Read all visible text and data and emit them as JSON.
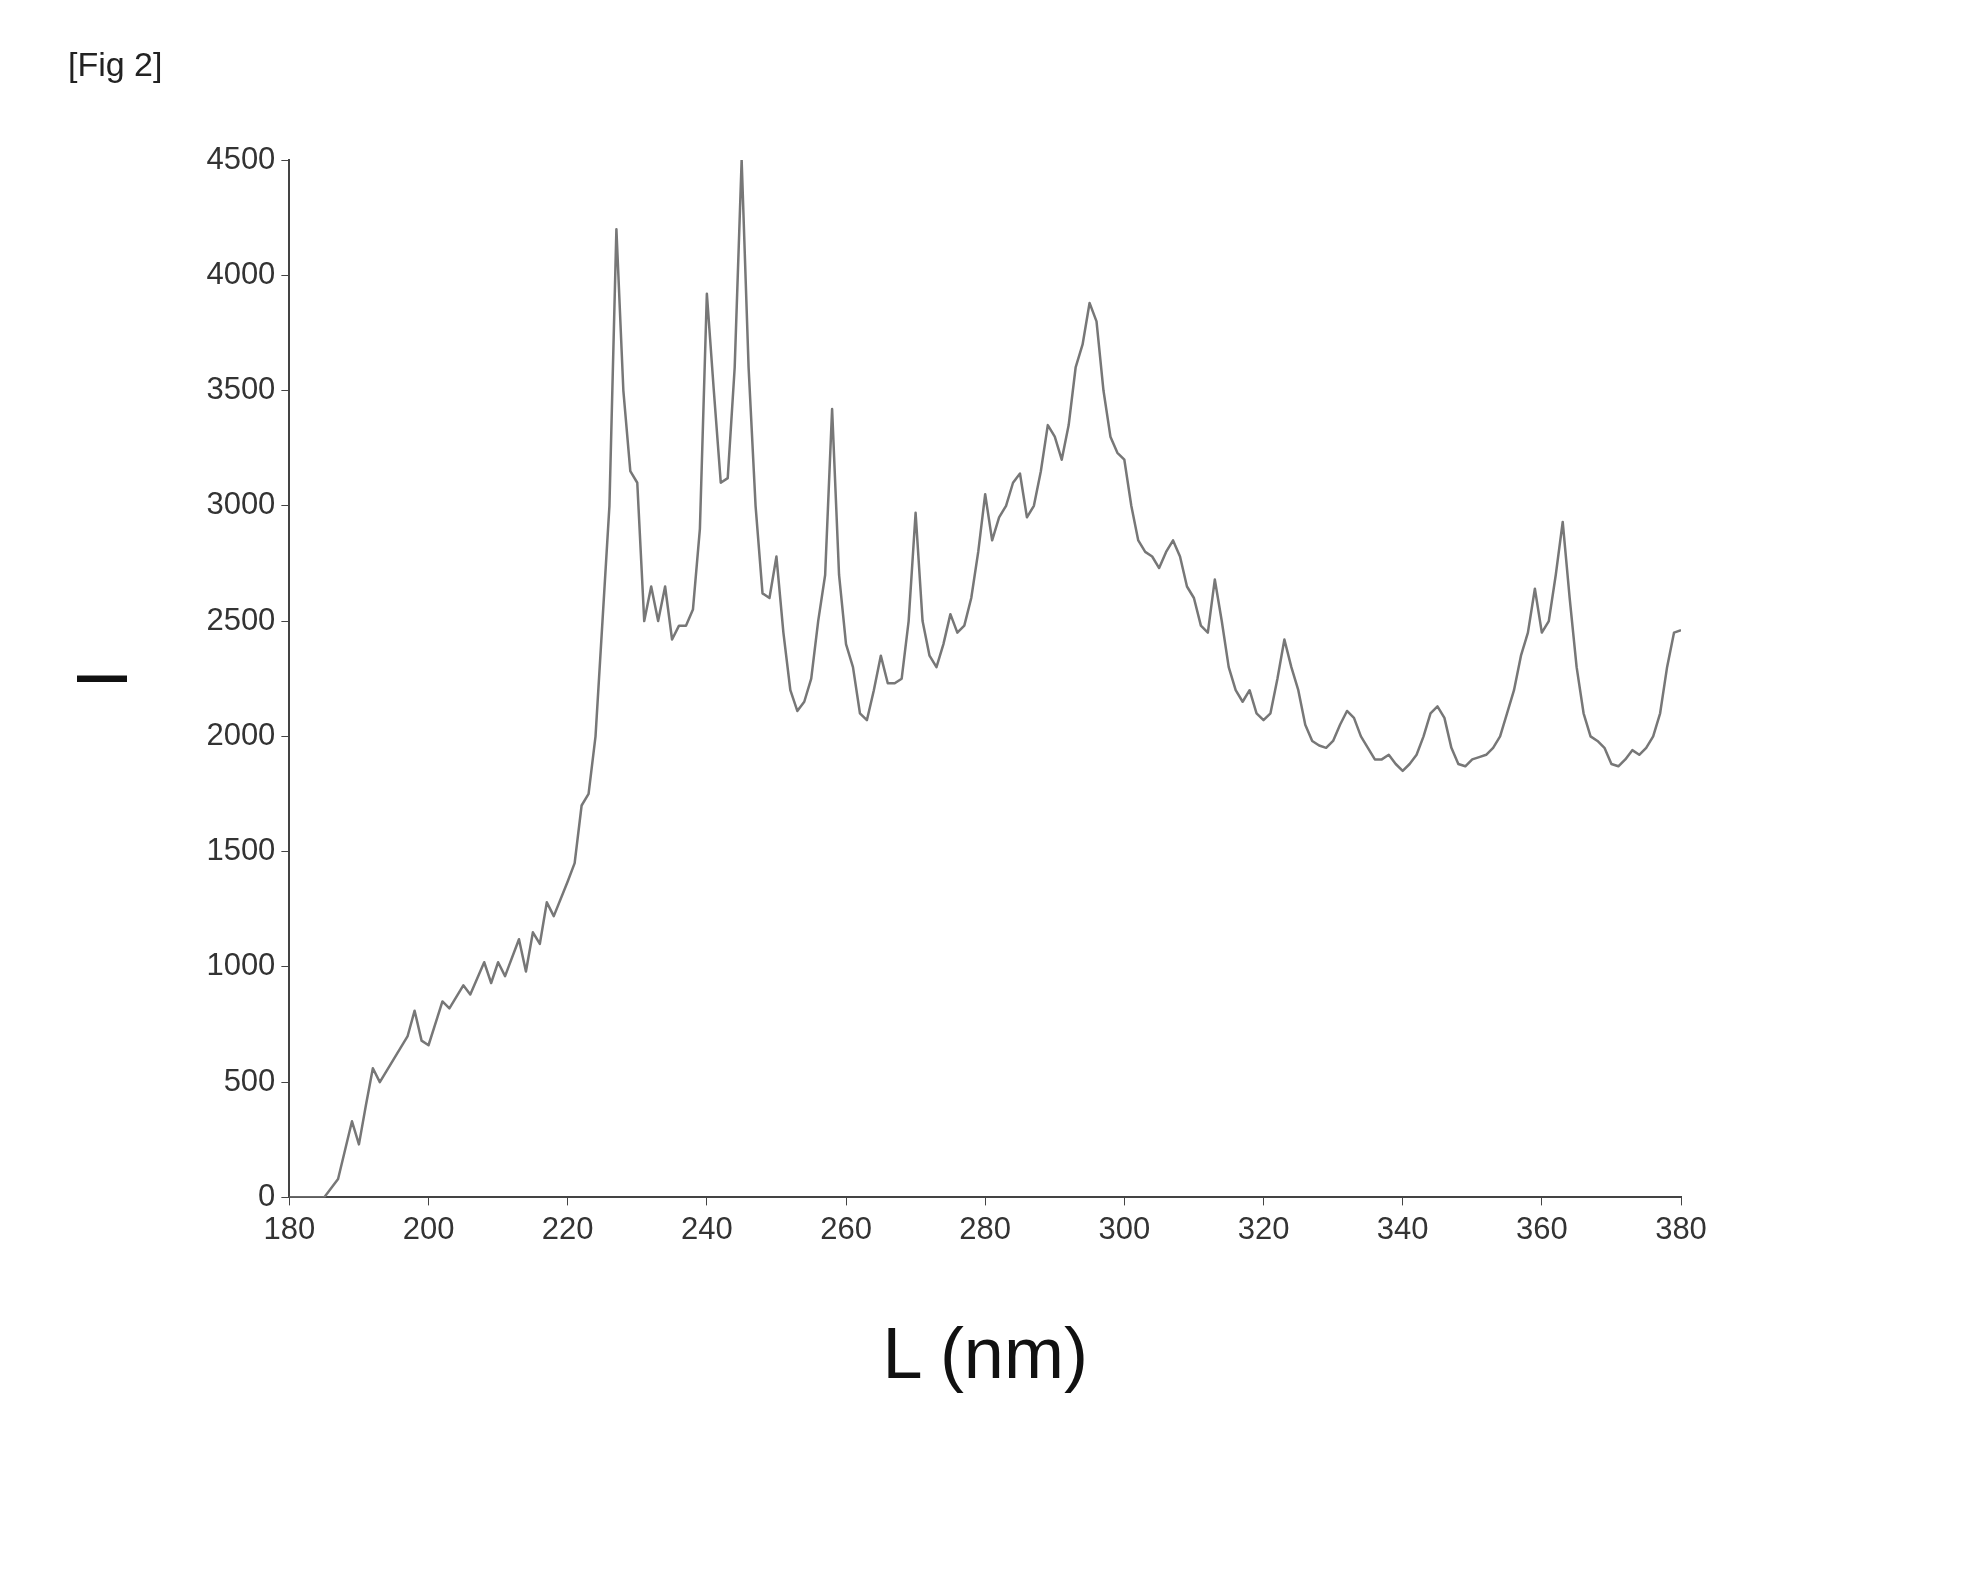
{
  "chart_data": {
    "type": "line",
    "xlabel": "L (nm)",
    "ylabel": "I",
    "annotations": [
      "[Fig 2]"
    ],
    "x": [
      180,
      185,
      187,
      189,
      190,
      191,
      192,
      193,
      195,
      197,
      198,
      199,
      200,
      202,
      203,
      205,
      206,
      208,
      209,
      210,
      211,
      213,
      214,
      215,
      216,
      217,
      218,
      220,
      221,
      222,
      223,
      224,
      225,
      226,
      227,
      228,
      229,
      230,
      231,
      232,
      233,
      234,
      235,
      236,
      237,
      238,
      239,
      240,
      241,
      242,
      243,
      244,
      245,
      246,
      247,
      248,
      249,
      250,
      251,
      252,
      253,
      254,
      255,
      256,
      257,
      258,
      259,
      260,
      261,
      262,
      263,
      264,
      265,
      266,
      267,
      268,
      269,
      270,
      271,
      272,
      273,
      274,
      275,
      276,
      277,
      278,
      279,
      280,
      281,
      282,
      283,
      284,
      285,
      286,
      287,
      288,
      289,
      290,
      291,
      292,
      293,
      294,
      295,
      296,
      297,
      298,
      299,
      300,
      301,
      302,
      303,
      304,
      305,
      306,
      307,
      308,
      309,
      310,
      311,
      312,
      313,
      314,
      315,
      316,
      317,
      318,
      319,
      320,
      321,
      322,
      323,
      324,
      325,
      326,
      327,
      328,
      329,
      330,
      331,
      332,
      333,
      334,
      335,
      336,
      337,
      338,
      339,
      340,
      341,
      342,
      343,
      344,
      345,
      346,
      347,
      348,
      349,
      350,
      351,
      352,
      353,
      354,
      355,
      356,
      357,
      358,
      359,
      360,
      361,
      362,
      363,
      364,
      365,
      366,
      367,
      368,
      369,
      370,
      371,
      372,
      373,
      374,
      375,
      376,
      377,
      378,
      379,
      380
    ],
    "series": [
      {
        "color": "#777777",
        "values": [
          0,
          0,
          80,
          330,
          230,
          400,
          560,
          500,
          600,
          700,
          810,
          680,
          660,
          850,
          820,
          920,
          880,
          1020,
          930,
          1020,
          960,
          1120,
          980,
          1150,
          1100,
          1280,
          1220,
          1370,
          1450,
          1700,
          1750,
          2000,
          2500,
          3000,
          4200,
          3500,
          3150,
          3100,
          2500,
          2650,
          2500,
          2650,
          2420,
          2480,
          2480,
          2550,
          2900,
          3920,
          3500,
          3100,
          3120,
          3600,
          4500,
          3600,
          3000,
          2620,
          2600,
          2780,
          2450,
          2200,
          2110,
          2150,
          2250,
          2500,
          2700,
          3420,
          2700,
          2400,
          2300,
          2100,
          2070,
          2200,
          2350,
          2230,
          2230,
          2250,
          2500,
          2970,
          2500,
          2350,
          2300,
          2400,
          2530,
          2450,
          2480,
          2600,
          2800,
          3050,
          2850,
          2950,
          3000,
          3100,
          3140,
          2950,
          3000,
          3150,
          3350,
          3300,
          3200,
          3350,
          3600,
          3700,
          3880,
          3800,
          3500,
          3300,
          3230,
          3200,
          3000,
          2850,
          2800,
          2780,
          2730,
          2800,
          2850,
          2780,
          2650,
          2600,
          2480,
          2450,
          2680,
          2500,
          2300,
          2200,
          2150,
          2200,
          2100,
          2070,
          2100,
          2250,
          2420,
          2300,
          2200,
          2050,
          1980,
          1960,
          1950,
          1980,
          2050,
          2110,
          2080,
          2000,
          1950,
          1900,
          1900,
          1920,
          1880,
          1850,
          1880,
          1920,
          2000,
          2100,
          2130,
          2080,
          1950,
          1880,
          1870,
          1900,
          1910,
          1920,
          1950,
          2000,
          2100,
          2200,
          2350,
          2450,
          2640,
          2450,
          2500,
          2700,
          2930,
          2600,
          2300,
          2100,
          2000,
          1980,
          1950,
          1880,
          1870,
          1900,
          1940,
          1920,
          1950,
          2000,
          2100,
          2300,
          2450,
          2460
        ]
      }
    ],
    "xlim": [
      180,
      380
    ],
    "xticks": [
      180,
      200,
      220,
      240,
      260,
      280,
      300,
      320,
      340,
      360,
      380
    ],
    "ylim": [
      0,
      4500
    ],
    "yticks": [
      0,
      500,
      1000,
      1500,
      2000,
      2500,
      3000,
      3500,
      4000,
      4500
    ],
    "grid": false,
    "legend": false,
    "marker": "none",
    "line_style": "solid"
  }
}
